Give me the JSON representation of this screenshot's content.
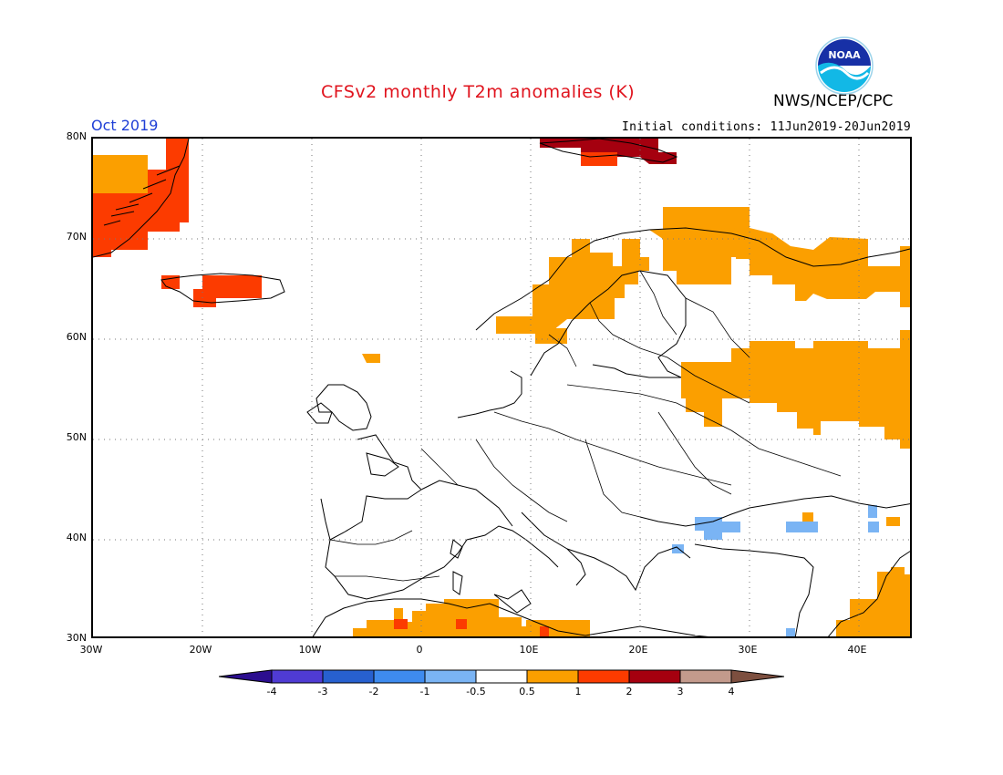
{
  "header": {
    "title": "CFSv2 monthly T2m anomalies (K)",
    "org": "NWS/NCEP/CPC",
    "month": "Oct 2019",
    "initial_conditions": "Initial conditions: 11Jun2019-20Jun2019",
    "logo_text": "NOAA"
  },
  "axes": {
    "lat_labels": [
      "80N",
      "70N",
      "60N",
      "50N",
      "40N",
      "30N"
    ],
    "lon_labels": [
      "30W",
      "20W",
      "10W",
      "0",
      "10E",
      "20E",
      "30E",
      "40E"
    ]
  },
  "colorbar": {
    "labels": [
      "-4",
      "-3",
      "-2",
      "-1",
      "-0.5",
      "0.5",
      "1",
      "2",
      "3",
      "4"
    ],
    "colors": [
      "#2c0e8f",
      "#4f3bd3",
      "#2760cf",
      "#3e8bef",
      "#7ab4f4",
      "#ffffff",
      "#fb9f00",
      "#fc3b00",
      "#a5000f",
      "#c39a8c",
      "#7d4f3f"
    ]
  },
  "chart_data": {
    "type": "heatmap",
    "title": "CFSv2 monthly T2m anomalies (K)",
    "xlim": [
      -30,
      45
    ],
    "ylim": [
      30,
      80
    ],
    "anomaly_regions": [
      {
        "region": "Greenland east coast",
        "class": "1 to 2"
      },
      {
        "region": "Iceland",
        "class": "1 to 2"
      },
      {
        "region": "Svalbard",
        "class": "2 to 3"
      },
      {
        "region": "Norway coast",
        "class": "0.5 to 1"
      },
      {
        "region": "Northern Scandinavia and Kola",
        "class": "0.5 to 1"
      },
      {
        "region": "Western Russia",
        "class": "0.5 to 1"
      },
      {
        "region": "North Africa",
        "class": "0.5 to 1"
      },
      {
        "region": "Middle East",
        "class": "0.5 to 1"
      },
      {
        "region": "Aegean and Turkey",
        "class": "-1 to -0.5"
      }
    ]
  }
}
